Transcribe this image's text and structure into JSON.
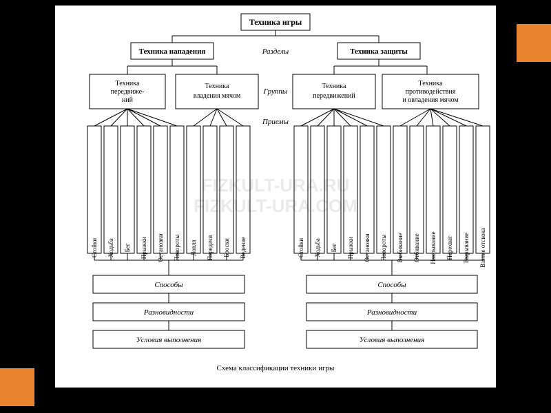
{
  "type": "tree",
  "background_color": "#000000",
  "sheet_color": "#ffffff",
  "accent_color": "#e8852e",
  "stroke_color": "#000000",
  "font_family": "Times New Roman",
  "caption": "Схема классификации техники игры",
  "root": {
    "label": "Техника игры",
    "fontsize": 12,
    "bold": true
  },
  "level_labels": {
    "sections": "Разделы",
    "groups": "Группы",
    "techniques": "Приемы",
    "fontsize": 11,
    "italic": true
  },
  "sections": [
    {
      "label": "Техника нападения",
      "fontsize": 11,
      "bold": true
    },
    {
      "label": "Техника защиты",
      "fontsize": 11,
      "bold": true
    }
  ],
  "groups": [
    {
      "label_lines": [
        "Техника",
        "передвиже-",
        "ний"
      ],
      "fontsize": 10
    },
    {
      "label_lines": [
        "Техника",
        "владения мячом"
      ],
      "fontsize": 10
    },
    {
      "label_lines": [
        "Техника",
        "передвижений"
      ],
      "fontsize": 10
    },
    {
      "label_lines": [
        "Техника",
        "противодействия",
        "и овладения мячом"
      ],
      "fontsize": 10
    }
  ],
  "techniques_left": [
    "Стойки",
    "Ходьба",
    "Бег",
    "Прыжки",
    "Остановки",
    "Повороты",
    "Ловля",
    "Передачи",
    "Броски",
    "Ведение"
  ],
  "techniques_right": [
    "Стойки",
    "Ходьба",
    "Бег",
    "Прыжки",
    "Остановки",
    "Повороты",
    "Выбивание",
    "Отбивание",
    "Накрывание",
    "Перехват",
    "Вырывание",
    "Взятие отскока"
  ],
  "technique_fontsize": 9,
  "bottom_chain": [
    {
      "label": "Способы",
      "fontsize": 11,
      "italic": true
    },
    {
      "label": "Разновидности",
      "fontsize": 11,
      "italic": true
    },
    {
      "label": "Условия выполнения",
      "fontsize": 11,
      "italic": true
    }
  ],
  "watermark_lines": [
    "FIZKULT-URA.RU",
    "FIZKULT-URA.COM"
  ],
  "watermark_fontsize": 26
}
